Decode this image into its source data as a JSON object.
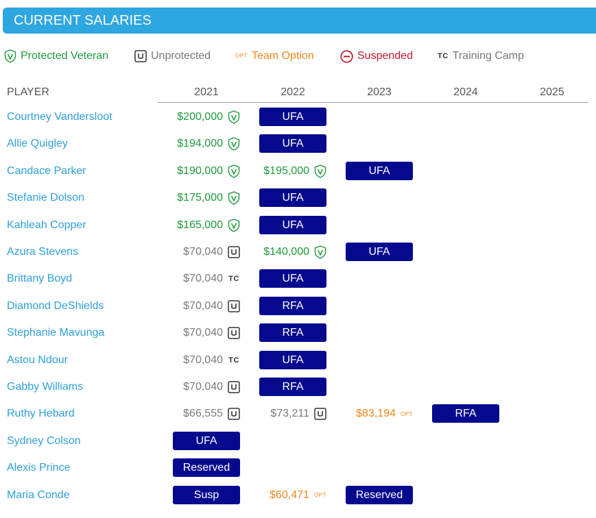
{
  "title": "CURRENT SALARIES",
  "legend": {
    "protected": "Protected Veteran",
    "unprotected": "Unprotected",
    "option_tag": "OPT",
    "option": "Team Option",
    "suspended": "Suspended",
    "tc_tag": "TC",
    "training_camp": "Training Camp"
  },
  "colors": {
    "header": "#2ea6e0",
    "link": "#2e9fd9",
    "protected": "#1e9a3a",
    "option": "#f0861c",
    "suspended": "#c0182f",
    "pill": "#05098e"
  },
  "columns": {
    "player": "PLAYER",
    "years": [
      "2021",
      "2022",
      "2023",
      "2024",
      "2025"
    ]
  },
  "players": [
    {
      "name": "Courtney Vandersloot",
      "cells": [
        {
          "amount": "$200,000",
          "type": "protected"
        },
        {
          "label": "UFA"
        }
      ]
    },
    {
      "name": "Allie Quigley",
      "cells": [
        {
          "amount": "$194,000",
          "type": "protected"
        },
        {
          "label": "UFA"
        }
      ]
    },
    {
      "name": "Candace Parker",
      "cells": [
        {
          "amount": "$190,000",
          "type": "protected"
        },
        {
          "amount": "$195,000",
          "type": "protected"
        },
        {
          "label": "UFA"
        }
      ]
    },
    {
      "name": "Stefanie Dolson",
      "cells": [
        {
          "amount": "$175,000",
          "type": "protected"
        },
        {
          "label": "UFA"
        }
      ]
    },
    {
      "name": "Kahleah Copper",
      "cells": [
        {
          "amount": "$165,000",
          "type": "protected"
        },
        {
          "label": "UFA"
        }
      ]
    },
    {
      "name": "Azura Stevens",
      "cells": [
        {
          "amount": "$70,040",
          "type": "unprotected"
        },
        {
          "amount": "$140,000",
          "type": "protected"
        },
        {
          "label": "UFA"
        }
      ]
    },
    {
      "name": "Brittany Boyd",
      "cells": [
        {
          "amount": "$70,040",
          "type": "training_camp"
        },
        {
          "label": "UFA"
        }
      ]
    },
    {
      "name": "Diamond DeShields",
      "cells": [
        {
          "amount": "$70,040",
          "type": "unprotected"
        },
        {
          "label": "RFA"
        }
      ]
    },
    {
      "name": "Stephanie Mavunga",
      "cells": [
        {
          "amount": "$70,040",
          "type": "unprotected"
        },
        {
          "label": "RFA"
        }
      ]
    },
    {
      "name": "Astou Ndour",
      "cells": [
        {
          "amount": "$70,040",
          "type": "training_camp"
        },
        {
          "label": "UFA"
        }
      ]
    },
    {
      "name": "Gabby Williams",
      "cells": [
        {
          "amount": "$70,040",
          "type": "unprotected"
        },
        {
          "label": "RFA"
        }
      ]
    },
    {
      "name": "Ruthy Hebard",
      "cells": [
        {
          "amount": "$66,555",
          "type": "unprotected"
        },
        {
          "amount": "$73,211",
          "type": "unprotected"
        },
        {
          "amount": "$83,194",
          "type": "option"
        },
        {
          "label": "RFA"
        }
      ]
    },
    {
      "name": "Sydney Colson",
      "cells": [
        {
          "label": "UFA"
        }
      ]
    },
    {
      "name": "Alexis Prince",
      "cells": [
        {
          "label": "Reserved"
        }
      ]
    },
    {
      "name": "Maria Conde",
      "cells": [
        {
          "label": "Susp"
        },
        {
          "amount": "$60,471",
          "type": "option"
        },
        {
          "label": "Reserved"
        }
      ]
    }
  ]
}
